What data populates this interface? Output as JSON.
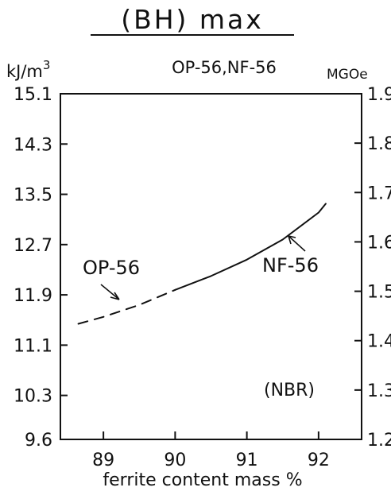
{
  "chart_data": {
    "type": "line",
    "title": "(BH) max",
    "subtitle": "OP-56,NF-56",
    "xlabel": "ferrite content mass %",
    "y_unit_left": "kJ/m",
    "y_unit_left_sup": "3",
    "y_unit_right": "MGOe",
    "xlim": [
      88.4,
      92.6
    ],
    "x_ticks": [
      "89",
      "90",
      "91",
      "92"
    ],
    "ylim_left": [
      9.6,
      15.1
    ],
    "y_ticks_left": [
      "15.1",
      "14.3",
      "13.5",
      "12.7",
      "11.9",
      "11.1",
      "10.3",
      "9.6"
    ],
    "ylim_right": [
      1.2,
      1.9
    ],
    "y_ticks_right": [
      "1.9",
      "1.8",
      "1.7",
      "1.6",
      "1.5",
      "1.4",
      "1.3",
      "1.2"
    ],
    "grid": false,
    "series": [
      {
        "name": "OP-56",
        "style": "dashed",
        "x": [
          88.65,
          89.0,
          89.5,
          90.0
        ],
        "y": [
          11.44,
          11.55,
          11.74,
          11.98
        ]
      },
      {
        "name": "NF-56",
        "style": "solid",
        "x": [
          90.0,
          90.5,
          91.0,
          91.5,
          92.0,
          92.1
        ],
        "y": [
          11.98,
          12.2,
          12.46,
          12.78,
          13.21,
          13.35
        ]
      }
    ],
    "annotations": [
      "(NBR)"
    ],
    "colors": {
      "line": "#111111",
      "axis": "#111111",
      "background": "#ffffff"
    }
  }
}
